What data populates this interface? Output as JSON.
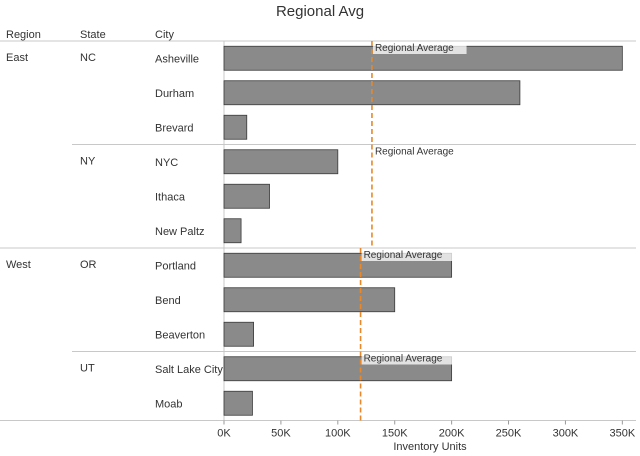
{
  "chart_data": {
    "type": "bar",
    "orientation": "horizontal",
    "title": "Regional Avg",
    "headers": {
      "region": "Region",
      "state": "State",
      "city": "City"
    },
    "xlabel": "Inventory Units",
    "xlim": [
      0,
      362000
    ],
    "ticks": [
      {
        "value": 0,
        "label": "0K"
      },
      {
        "value": 50000,
        "label": "50K"
      },
      {
        "value": 100000,
        "label": "100K"
      },
      {
        "value": 150000,
        "label": "150K"
      },
      {
        "value": 200000,
        "label": "200K"
      },
      {
        "value": 250000,
        "label": "250K"
      },
      {
        "value": 300000,
        "label": "300K"
      },
      {
        "value": 350000,
        "label": "350K"
      }
    ],
    "bar_color": "#8a8a8a",
    "reference_line_color": "#e8882a",
    "reference_label": "Regional Average",
    "regions": [
      {
        "name": "East",
        "average": 130000,
        "states": [
          {
            "name": "NC",
            "cities": [
              {
                "name": "Asheville",
                "value": 350000
              },
              {
                "name": "Durham",
                "value": 260000
              },
              {
                "name": "Brevard",
                "value": 20000
              }
            ]
          },
          {
            "name": "NY",
            "cities": [
              {
                "name": "NYC",
                "value": 100000
              },
              {
                "name": "Ithaca",
                "value": 40000
              },
              {
                "name": "New Paltz",
                "value": 15000
              }
            ]
          }
        ]
      },
      {
        "name": "West",
        "average": 120000,
        "states": [
          {
            "name": "OR",
            "cities": [
              {
                "name": "Portland",
                "value": 200000
              },
              {
                "name": "Bend",
                "value": 150000
              },
              {
                "name": "Beaverton",
                "value": 26000
              }
            ]
          },
          {
            "name": "UT",
            "cities": [
              {
                "name": "Salt Lake City",
                "value": 200000
              },
              {
                "name": "Moab",
                "value": 25000
              }
            ]
          }
        ]
      }
    ]
  }
}
